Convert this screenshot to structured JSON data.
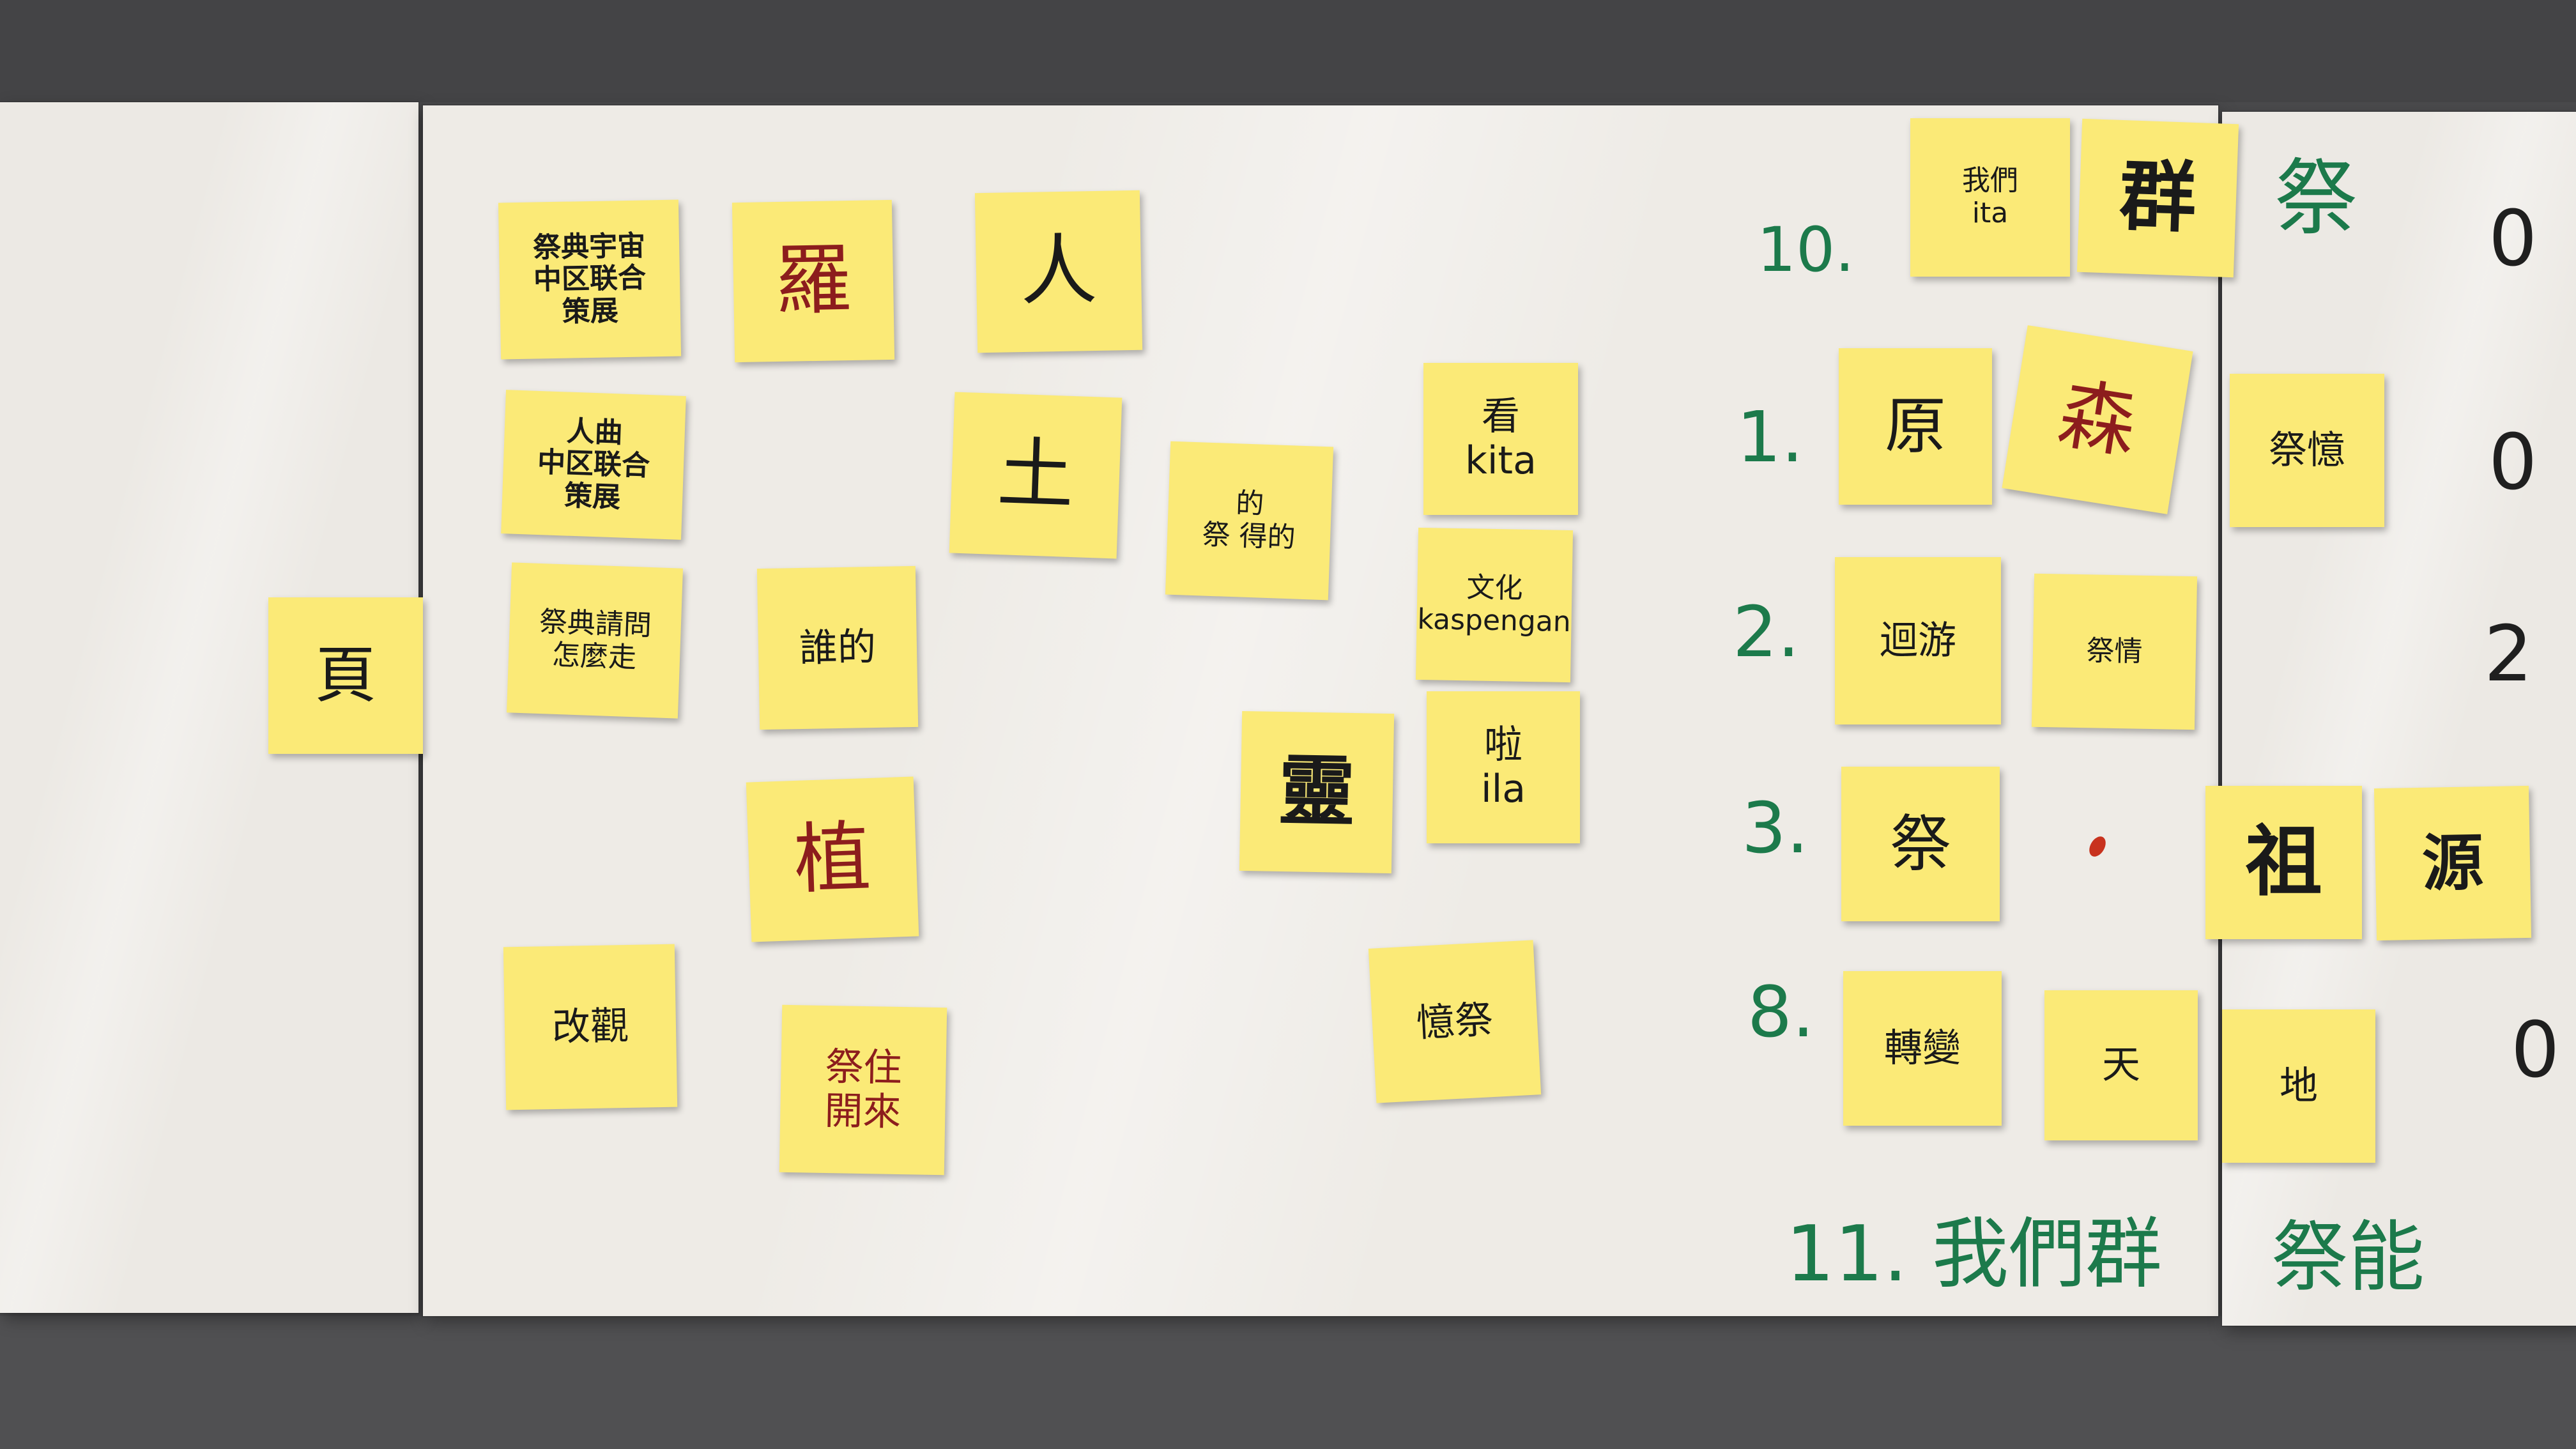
{
  "notes": {
    "n1": "祭典宇宙\n中区联合\n策展",
    "n2": "人曲\n中区联合\n策展",
    "n3": "祭典請問\n怎麼走",
    "n4": "頁",
    "n5": "羅",
    "n6": "人",
    "n7": "土",
    "n8": "誰的",
    "n9": "植",
    "n10": "改觀",
    "n11": "祭住\n開來",
    "n12": "的\n祭 得的",
    "n13": "靈",
    "n14": "看\nkita",
    "n15": "文化\nkaspengan",
    "n16": "啦\nila",
    "n17": "憶祭",
    "n18": "我們\nita",
    "n19": "群",
    "n20": "原",
    "n21": "森",
    "n22": "迴游",
    "n23": "祭情",
    "n24": "祭",
    "n25": "轉變",
    "n26": "天",
    "n27": "祭憶",
    "n28": "祖",
    "n29": "源",
    "n30": "地"
  },
  "markers": {
    "m1": "10.",
    "m2": "1.",
    "m3": "2.",
    "m4": "3.",
    "m5": "8.",
    "m6": "11. 我們群",
    "m7": "祭",
    "m8": "祭能",
    "m9": "0",
    "m10": "0",
    "m11": "2",
    "m12": "0"
  },
  "colors": {
    "note_yellow": "#fbea77",
    "marker_green": "#1c7a4b",
    "paper": "#ece9e4",
    "background": "#4a4a4c"
  }
}
